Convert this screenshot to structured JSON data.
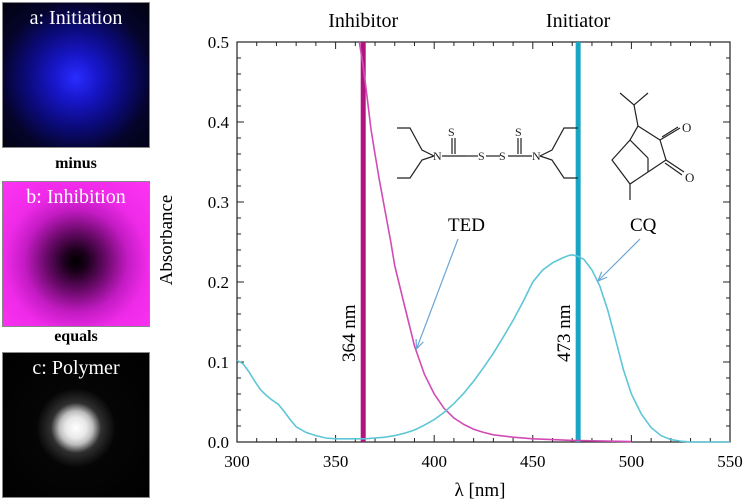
{
  "panels": {
    "a": "a: Initiation",
    "minus": "minus",
    "b": "b: Inhibition",
    "equals": "equals",
    "c": "c: Polymer"
  },
  "chart_data": {
    "type": "line",
    "xlabel": "λ [nm]",
    "ylabel": "Absorbance",
    "xlim": [
      300,
      550
    ],
    "ylim": [
      0,
      0.5
    ],
    "xticks": [
      300,
      350,
      400,
      450,
      500,
      550
    ],
    "yticks": [
      0.0,
      0.1,
      0.2,
      0.3,
      0.4,
      0.5
    ],
    "grid": false,
    "series": [
      {
        "name": "TED",
        "color": "#d24bb5",
        "x": [
          362,
          364,
          366,
          368,
          370,
          372,
          375,
          378,
          380,
          385,
          390,
          395,
          400,
          405,
          410,
          415,
          420,
          425,
          430,
          440,
          450,
          460,
          470,
          480,
          490,
          500
        ],
        "y": [
          0.5,
          0.47,
          0.43,
          0.39,
          0.36,
          0.33,
          0.29,
          0.25,
          0.22,
          0.17,
          0.12,
          0.085,
          0.06,
          0.042,
          0.03,
          0.022,
          0.016,
          0.012,
          0.009,
          0.006,
          0.004,
          0.003,
          0.002,
          0.0015,
          0.001,
          0.0005
        ]
      },
      {
        "name": "CQ",
        "color": "#5ec6d6",
        "x": [
          300,
          303,
          306,
          309,
          312,
          315,
          318,
          321,
          324,
          327,
          330,
          335,
          340,
          345,
          350,
          355,
          360,
          365,
          370,
          375,
          380,
          385,
          390,
          395,
          400,
          405,
          410,
          415,
          420,
          425,
          430,
          435,
          440,
          445,
          450,
          455,
          460,
          465,
          468,
          470,
          473,
          476,
          480,
          484,
          488,
          492,
          496,
          500,
          505,
          510,
          515,
          520,
          525,
          530,
          540,
          550
        ],
        "y": [
          0.102,
          0.098,
          0.088,
          0.076,
          0.065,
          0.058,
          0.052,
          0.047,
          0.038,
          0.028,
          0.019,
          0.012,
          0.008,
          0.005,
          0.004,
          0.004,
          0.004,
          0.004,
          0.005,
          0.006,
          0.008,
          0.011,
          0.015,
          0.021,
          0.028,
          0.037,
          0.048,
          0.061,
          0.076,
          0.093,
          0.111,
          0.131,
          0.152,
          0.175,
          0.2,
          0.215,
          0.224,
          0.23,
          0.233,
          0.234,
          0.232,
          0.228,
          0.215,
          0.195,
          0.165,
          0.128,
          0.09,
          0.06,
          0.035,
          0.018,
          0.008,
          0.003,
          0.001,
          0.0,
          0.0,
          0.0
        ]
      }
    ],
    "vlines": [
      {
        "x": 364,
        "label": "364 nm",
        "top_label": "Inhibitor",
        "color": "#b0157f"
      },
      {
        "x": 473,
        "label": "473 nm",
        "top_label": "Initiator",
        "color": "#1aa5c4"
      }
    ],
    "annotations": [
      {
        "text": "TED",
        "target_series": "TED",
        "target_x": 390
      },
      {
        "text": "CQ",
        "target_series": "CQ",
        "target_x": 482
      }
    ]
  }
}
